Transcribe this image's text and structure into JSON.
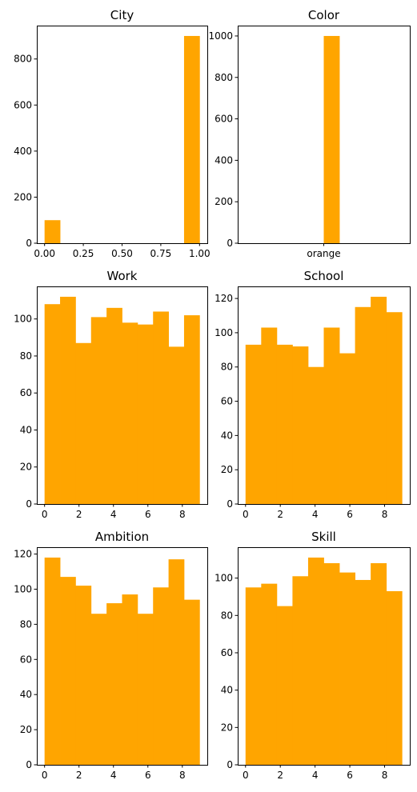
{
  "colors": {
    "bar": "#ffa500"
  },
  "chart_data": [
    {
      "type": "bar",
      "title": "City",
      "xlabel": "",
      "ylabel": "",
      "bin_edges": [
        0,
        0.1,
        0.2,
        0.3,
        0.4,
        0.5,
        0.6,
        0.7,
        0.8,
        0.9,
        1.0
      ],
      "values": [
        100,
        0,
        0,
        0,
        0,
        0,
        0,
        0,
        0,
        900
      ],
      "xlim": [
        -0.05,
        1.05
      ],
      "ylim": [
        0,
        945
      ],
      "xticks": [
        0,
        0.25,
        0.5,
        0.75,
        1.0
      ],
      "xtick_labels": [
        "0.00",
        "0.25",
        "0.50",
        "0.75",
        "1.00"
      ],
      "yticks": [
        0,
        200,
        400,
        600,
        800
      ]
    },
    {
      "type": "bar",
      "title": "Color",
      "xlabel": "",
      "ylabel": "",
      "bin_edges": [
        -0.5,
        -0.4,
        -0.3,
        -0.2,
        -0.1,
        0,
        0.1,
        0.2,
        0.3,
        0.4,
        0.5
      ],
      "values": [
        0,
        0,
        0,
        0,
        0,
        1000,
        0,
        0,
        0,
        0
      ],
      "xlim": [
        -0.55,
        0.55
      ],
      "ylim": [
        0,
        1050
      ],
      "xticks": [
        0
      ],
      "xtick_labels": [
        "orange"
      ],
      "yticks": [
        0,
        200,
        400,
        600,
        800,
        1000
      ]
    },
    {
      "type": "bar",
      "title": "Work",
      "xlabel": "",
      "ylabel": "",
      "bin_edges": [
        0,
        0.9,
        1.8,
        2.7,
        3.6,
        4.5,
        5.4,
        6.3,
        7.2,
        8.1,
        9.0
      ],
      "values": [
        108,
        112,
        87,
        101,
        106,
        98,
        97,
        104,
        85,
        102
      ],
      "xlim": [
        -0.45,
        9.45
      ],
      "ylim": [
        0,
        117.6
      ],
      "xticks": [
        0,
        2,
        4,
        6,
        8
      ],
      "xtick_labels": [
        "0",
        "2",
        "4",
        "6",
        "8"
      ],
      "yticks": [
        0,
        20,
        40,
        60,
        80,
        100
      ]
    },
    {
      "type": "bar",
      "title": "School",
      "xlabel": "",
      "ylabel": "",
      "bin_edges": [
        0,
        0.9,
        1.8,
        2.7,
        3.6,
        4.5,
        5.4,
        6.3,
        7.2,
        8.1,
        9.0
      ],
      "values": [
        93,
        103,
        93,
        92,
        80,
        103,
        88,
        115,
        121,
        112
      ],
      "xlim": [
        -0.45,
        9.45
      ],
      "ylim": [
        0,
        127.05
      ],
      "xticks": [
        0,
        2,
        4,
        6,
        8
      ],
      "xtick_labels": [
        "0",
        "2",
        "4",
        "6",
        "8"
      ],
      "yticks": [
        0,
        20,
        40,
        60,
        80,
        100,
        120
      ]
    },
    {
      "type": "bar",
      "title": "Ambition",
      "xlabel": "",
      "ylabel": "",
      "bin_edges": [
        0,
        0.9,
        1.8,
        2.7,
        3.6,
        4.5,
        5.4,
        6.3,
        7.2,
        8.1,
        9.0
      ],
      "values": [
        118,
        107,
        102,
        86,
        92,
        97,
        86,
        101,
        117,
        94
      ],
      "xlim": [
        -0.45,
        9.45
      ],
      "ylim": [
        0,
        123.9
      ],
      "xticks": [
        0,
        2,
        4,
        6,
        8
      ],
      "xtick_labels": [
        "0",
        "2",
        "4",
        "6",
        "8"
      ],
      "yticks": [
        0,
        20,
        40,
        60,
        80,
        100,
        120
      ]
    },
    {
      "type": "bar",
      "title": "Skill",
      "xlabel": "",
      "ylabel": "",
      "bin_edges": [
        0,
        0.9,
        1.8,
        2.7,
        3.6,
        4.5,
        5.4,
        6.3,
        7.2,
        8.1,
        9.0
      ],
      "values": [
        95,
        97,
        85,
        101,
        111,
        108,
        103,
        99,
        108,
        93
      ],
      "xlim": [
        -0.45,
        9.45
      ],
      "ylim": [
        0,
        116.55
      ],
      "xticks": [
        0,
        2,
        4,
        6,
        8
      ],
      "xtick_labels": [
        "0",
        "2",
        "4",
        "6",
        "8"
      ],
      "yticks": [
        0,
        20,
        40,
        60,
        80,
        100
      ]
    }
  ]
}
